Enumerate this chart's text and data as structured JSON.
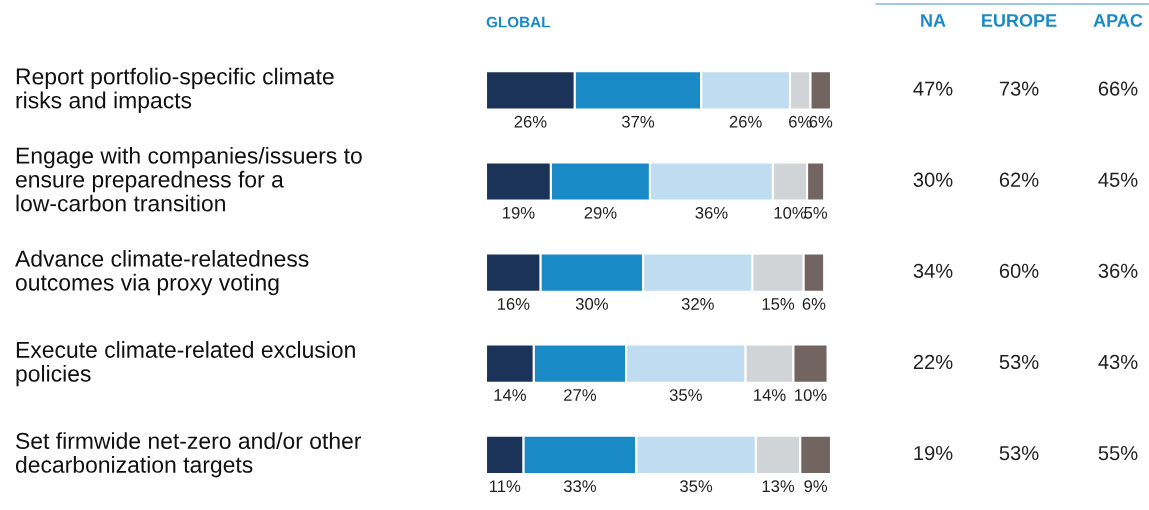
{
  "chart_data": {
    "type": "bar",
    "orientation": "horizontal",
    "stacked": true,
    "title": "GLOBAL",
    "categories": [
      "Report portfolio-specific climate\nrisks and impacts",
      "Engage with companies/issuers to\nensure preparedness for a\nlow-carbon transition",
      "Advance climate-relatedness\noutcomes via proxy voting",
      "Execute climate-related exclusion\npolicies",
      "Set firmwide net-zero and/or other\ndecarbonization targets"
    ],
    "series": [
      {
        "color": "#1b3358",
        "values": [
          26,
          19,
          16,
          14,
          11
        ],
        "value_labels": [
          "26%",
          "19%",
          "16%",
          "14%",
          "11%"
        ]
      },
      {
        "color": "#1a8ac6",
        "values": [
          37,
          29,
          30,
          27,
          33
        ],
        "value_labels": [
          "37%",
          "29%",
          "30%",
          "27%",
          "33%"
        ]
      },
      {
        "color": "#c0dcf0",
        "values": [
          26,
          36,
          32,
          35,
          35
        ],
        "value_labels": [
          "26%",
          "36%",
          "32%",
          "35%",
          "35%"
        ]
      },
      {
        "color": "#d0d4d6",
        "values": [
          6,
          10,
          15,
          14,
          13
        ],
        "value_labels": [
          "6%",
          "10%",
          "15%",
          "14%",
          "13%"
        ]
      },
      {
        "color": "#716461",
        "values": [
          6,
          5,
          6,
          10,
          9
        ],
        "value_labels": [
          "6%",
          "5%",
          "6%",
          "10%",
          "9%"
        ]
      }
    ],
    "annotations": [
      "NA",
      "EUROPE",
      "APAC",
      "47%",
      "73%",
      "66%",
      "30%",
      "62%",
      "45%",
      "34%",
      "60%",
      "36%",
      "22%",
      "53%",
      "43%",
      "19%",
      "53%",
      "55%"
    ]
  }
}
